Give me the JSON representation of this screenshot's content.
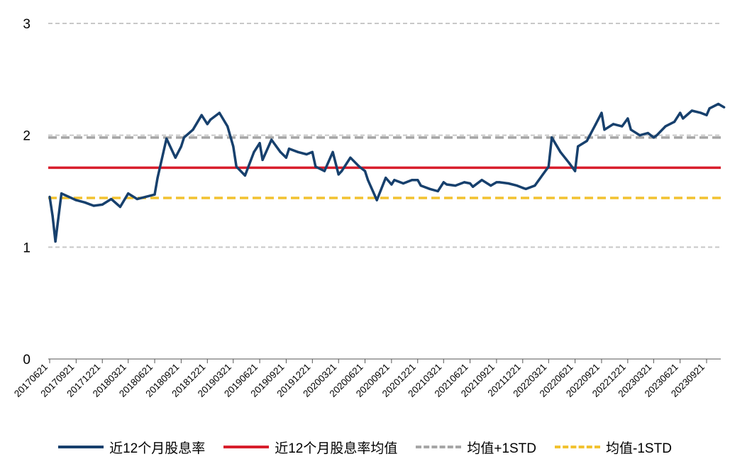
{
  "chart_data": {
    "type": "line",
    "title": "",
    "xlabel": "",
    "ylabel": "",
    "ylim": [
      0,
      3
    ],
    "yticks": [
      "0",
      "1",
      "2",
      "3"
    ],
    "grid": "dashed horizontal",
    "legend_position": "bottom",
    "x_ticks": [
      "20170621",
      "20170921",
      "20171221",
      "20180321",
      "20180621",
      "20180921",
      "20181221",
      "20190321",
      "20190621",
      "20190921",
      "20191221",
      "20200321",
      "20200621",
      "20200921",
      "20201221",
      "20210321",
      "20210621",
      "20210921",
      "20211221",
      "20220321",
      "20220621",
      "20220921",
      "20221221",
      "20230321",
      "20230621",
      "20230921"
    ],
    "series": [
      {
        "name": "近12个月股息率",
        "color": "#17406d",
        "style": "solid",
        "x": [
          "20170621",
          "20170701",
          "20170711",
          "20170801",
          "20170921",
          "20171021",
          "20171121",
          "20171221",
          "20180121",
          "20180221",
          "20180321",
          "20180421",
          "20180521",
          "20180621",
          "20180701",
          "20180801",
          "20180901",
          "20180921",
          "20181001",
          "20181101",
          "20181201",
          "20181221",
          "20190101",
          "20190201",
          "20190301",
          "20190321",
          "20190401",
          "20190501",
          "20190601",
          "20190621",
          "20190701",
          "20190801",
          "20190901",
          "20190921",
          "20191001",
          "20191101",
          "20191201",
          "20191221",
          "20200101",
          "20200201",
          "20200301",
          "20200321",
          "20200401",
          "20200501",
          "20200601",
          "20200621",
          "20200701",
          "20200801",
          "20200901",
          "20200921",
          "20201001",
          "20201101",
          "20201201",
          "20201221",
          "20210101",
          "20210201",
          "20210301",
          "20210321",
          "20210401",
          "20210501",
          "20210601",
          "20210621",
          "20210701",
          "20210801",
          "20210901",
          "20210921",
          "20211001",
          "20211101",
          "20211201",
          "20211221",
          "20220101",
          "20220201",
          "20220301",
          "20220321",
          "20220401",
          "20220501",
          "20220601",
          "20220621",
          "20220701",
          "20220801",
          "20220901",
          "20220921",
          "20221001",
          "20221101",
          "20221201",
          "20221221",
          "20230101",
          "20230201",
          "20230301",
          "20230321",
          "20230401",
          "20230501",
          "20230601",
          "20230621",
          "20230701",
          "20230801",
          "20230901",
          "20230921",
          "20231001",
          "20231101",
          "20231121"
        ],
        "values": [
          1.45,
          1.28,
          1.05,
          1.48,
          1.42,
          1.4,
          1.37,
          1.38,
          1.43,
          1.36,
          1.48,
          1.43,
          1.45,
          1.47,
          1.62,
          1.97,
          1.8,
          1.9,
          1.98,
          2.05,
          2.18,
          2.1,
          2.14,
          2.2,
          2.08,
          1.9,
          1.72,
          1.64,
          1.85,
          1.93,
          1.78,
          1.96,
          1.85,
          1.8,
          1.88,
          1.85,
          1.83,
          1.85,
          1.72,
          1.68,
          1.85,
          1.65,
          1.68,
          1.8,
          1.72,
          1.68,
          1.6,
          1.42,
          1.62,
          1.56,
          1.6,
          1.57,
          1.6,
          1.6,
          1.55,
          1.52,
          1.5,
          1.58,
          1.56,
          1.55,
          1.58,
          1.57,
          1.54,
          1.6,
          1.55,
          1.58,
          1.58,
          1.57,
          1.55,
          1.53,
          1.52,
          1.55,
          1.65,
          1.72,
          1.98,
          1.85,
          1.75,
          1.68,
          1.9,
          1.95,
          2.1,
          2.2,
          2.05,
          2.1,
          2.08,
          2.15,
          2.05,
          2.0,
          2.02,
          1.98,
          2.0,
          2.08,
          2.12,
          2.2,
          2.15,
          2.22,
          2.2,
          2.18,
          2.24,
          2.28,
          2.25
        ]
      },
      {
        "name": "近12个月股息率均值",
        "color": "#d81e2c",
        "style": "solid",
        "value": 1.71
      },
      {
        "name": "均值+1STD",
        "color": "#a6a6a6",
        "style": "dashed",
        "value": 1.98
      },
      {
        "name": "均值-1STD",
        "color": "#f2c230",
        "style": "dashed",
        "value": 1.44
      }
    ]
  }
}
